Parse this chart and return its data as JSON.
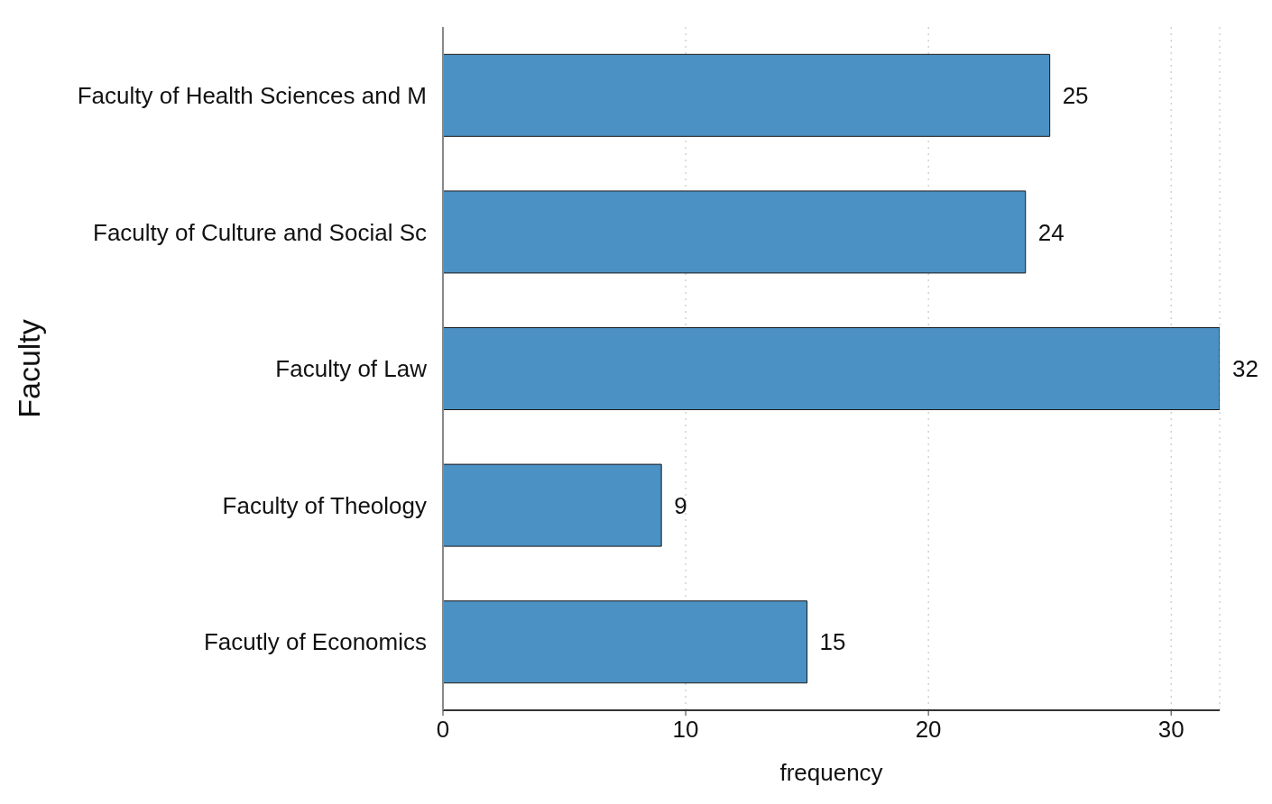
{
  "chart_data": {
    "type": "bar",
    "orientation": "horizontal",
    "ylabel": "Faculty",
    "xlabel": "frequency",
    "categories": [
      "Faculty of Health Sciences and M",
      "Faculty of Culture and Social Sc",
      "Faculty of Law",
      "Faculty of Theology",
      "Facutly of Economics"
    ],
    "values": [
      25,
      24,
      32,
      9,
      15
    ],
    "color": "#4b91c3",
    "xlim": [
      0,
      32
    ],
    "xticks": [
      0,
      10,
      20,
      30
    ],
    "grid": "x",
    "data_labels": true
  }
}
